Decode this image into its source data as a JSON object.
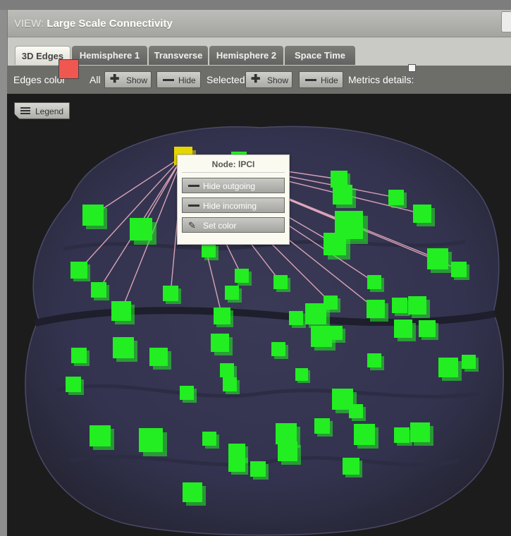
{
  "header": {
    "view_label": "VIEW:",
    "title": "Large Scale Connectivity"
  },
  "tabs": [
    {
      "label": "3D Edges",
      "active": true
    },
    {
      "label": "Hemisphere 1",
      "active": false
    },
    {
      "label": "Transverse",
      "active": false
    },
    {
      "label": "Hemisphere 2",
      "active": false
    },
    {
      "label": "Space Time",
      "active": false
    }
  ],
  "toolbar": {
    "edges_color_label": "Edges color",
    "edges_color": "#ef5750",
    "all_label": "All",
    "all_show": "Show",
    "all_hide": "Hide",
    "selected_label": "Selected",
    "selected_show": "Show",
    "selected_hide": "Hide",
    "metrics_label": "Metrics details:",
    "metrics_checked": false
  },
  "legend_button": "Legend",
  "node_popup": {
    "title": "Node: lPCI",
    "hide_outgoing": "Hide outgoing",
    "hide_incoming": "Hide incoming",
    "set_color": "Set color"
  },
  "colors": {
    "node": "#22ee22",
    "selected_node": "#e6d600",
    "edge": "#f4b6c8",
    "canvas_bg": "#1c1c1c"
  }
}
